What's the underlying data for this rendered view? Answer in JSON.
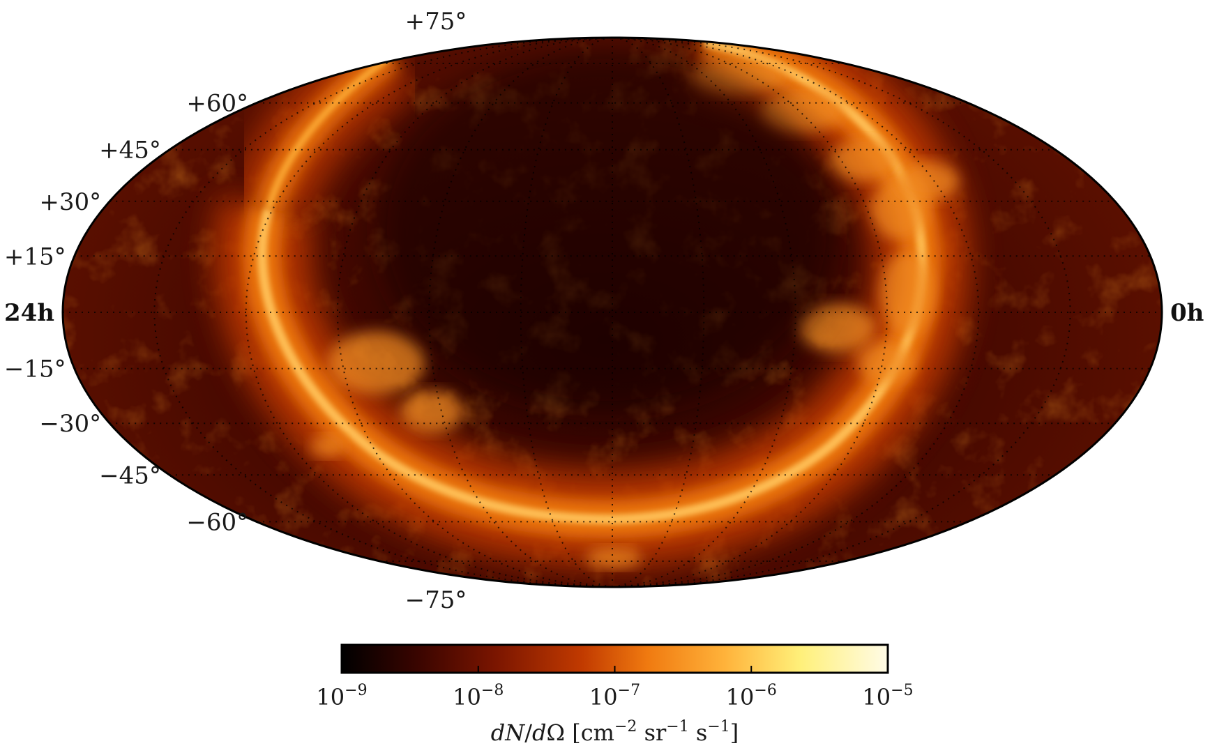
{
  "map": {
    "projection": "Mollweide (all-sky, equatorial coordinates)",
    "ra_labels": {
      "left": "24h",
      "right": "0h"
    },
    "dec_labels": [
      {
        "dec": 75,
        "text": "+75°"
      },
      {
        "dec": 60,
        "text": "+60°"
      },
      {
        "dec": 45,
        "text": "+45°"
      },
      {
        "dec": 30,
        "text": "+30°"
      },
      {
        "dec": 15,
        "text": "+15°"
      },
      {
        "dec": -15,
        "text": "−15°"
      },
      {
        "dec": -30,
        "text": "−30°"
      },
      {
        "dec": -45,
        "text": "−45°"
      },
      {
        "dec": -60,
        "text": "−60°"
      },
      {
        "dec": -75,
        "text": "−75°"
      }
    ],
    "graticule": {
      "dec_step_deg": 15,
      "ra_step_deg": 30,
      "style": "dotted"
    },
    "colormap": [
      "#000000",
      "#3a0500",
      "#7a1500",
      "#c13a00",
      "#f07a10",
      "#ffb23a",
      "#fff07a",
      "#fffbe6"
    ],
    "features": "bright ring of emission (Galactic plane) with diffuse clumps; dark interior"
  },
  "colorbar": {
    "ticks": [
      {
        "base": "10",
        "exp": "−9"
      },
      {
        "base": "10",
        "exp": "−8"
      },
      {
        "base": "10",
        "exp": "−7"
      },
      {
        "base": "10",
        "exp": "−6"
      },
      {
        "base": "10",
        "exp": "−5"
      }
    ],
    "range_log10": [
      -9,
      -5
    ],
    "label": "dN/dΩ [cm⁻² sr⁻¹ s⁻¹]"
  }
}
